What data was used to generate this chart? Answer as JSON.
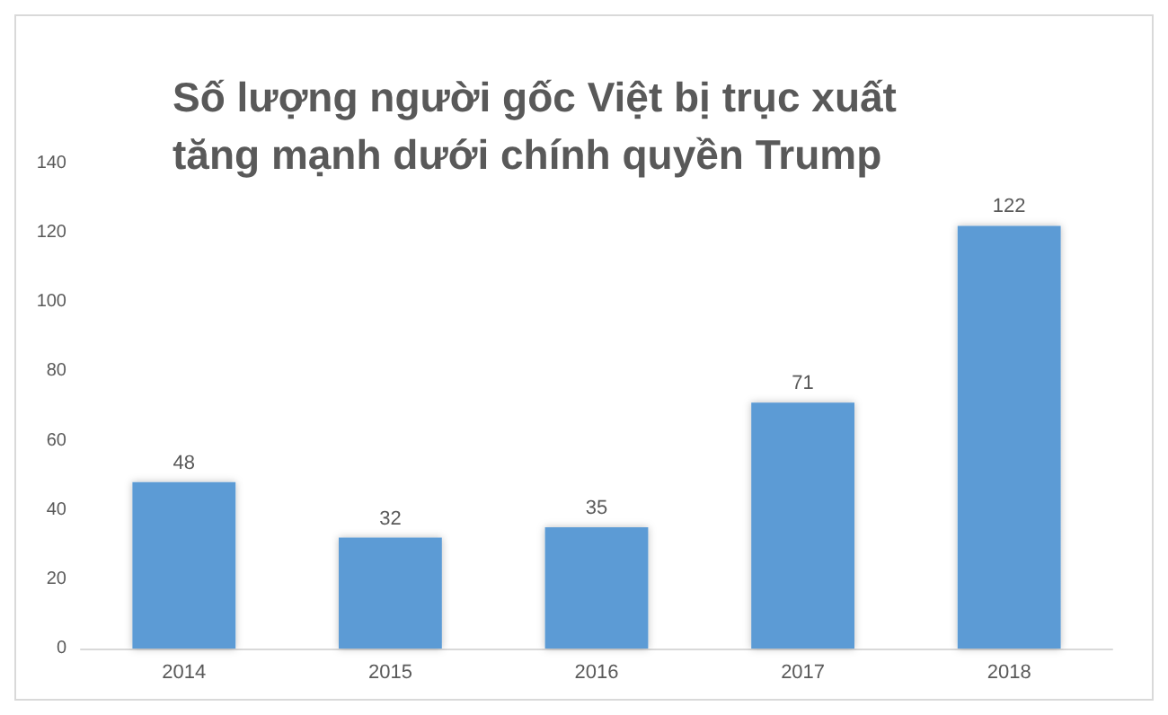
{
  "chart_data": {
    "type": "bar",
    "title": "Số lượng người gốc Việt bị trục xuất tăng mạnh dưới chính quyền Trump",
    "categories": [
      "2014",
      "2015",
      "2016",
      "2017",
      "2018"
    ],
    "values": [
      48,
      32,
      35,
      71,
      122
    ],
    "color": "#5b9bd5",
    "ylim": [
      0,
      140
    ],
    "yticks": [
      0,
      20,
      40,
      60,
      80,
      100,
      120,
      140
    ],
    "data_labels": true,
    "grid": false
  }
}
